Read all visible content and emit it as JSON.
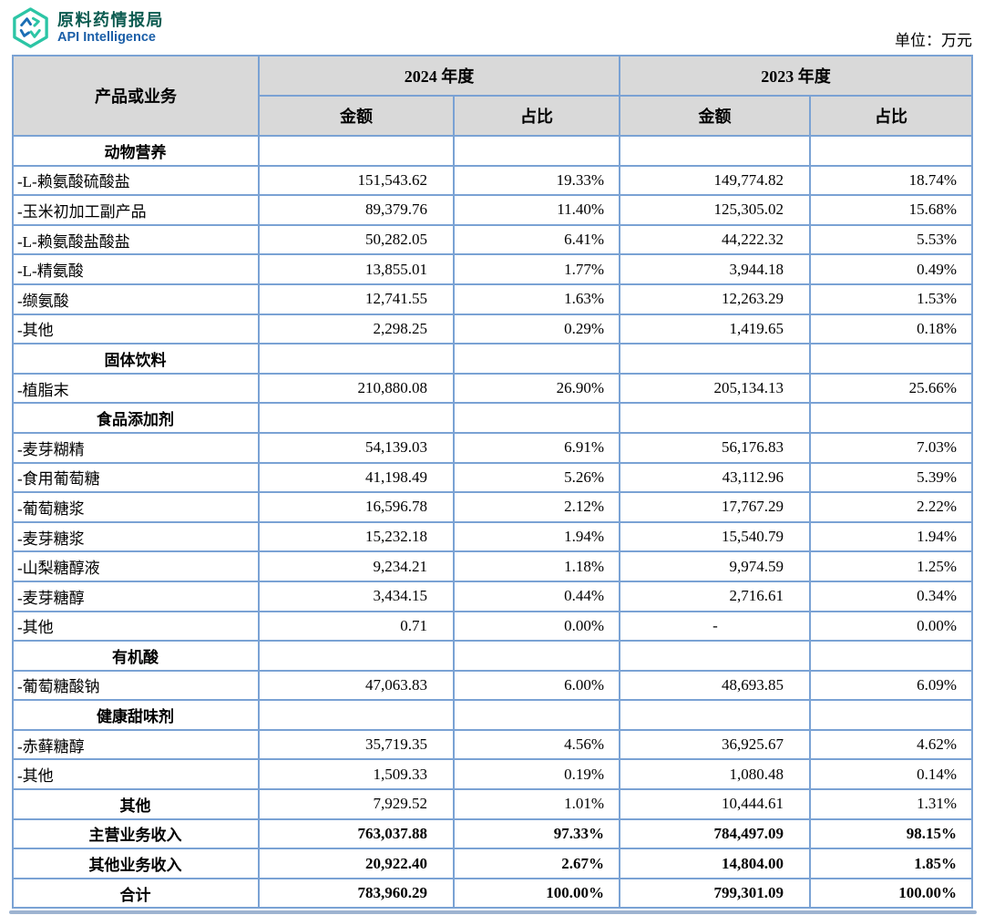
{
  "header": {
    "brand": {
      "title": "原料药情报局",
      "subtitle": "API Intelligence"
    },
    "unit_label": "单位：万元"
  },
  "colors": {
    "brand_teal": "#2cc5a5",
    "brand_blue": "#1b6fb5",
    "brand_title_text": "#0b5b50",
    "table_border": "#7aa2d4",
    "header_bg": "#d9d9d9",
    "footer_bar": "#9db3d0"
  },
  "table": {
    "col_product": "产品或业务",
    "year_2024": "2024 年度",
    "year_2023": "2023 年度",
    "amount_label": "金额",
    "share_label": "占比",
    "rows": [
      {
        "type": "category",
        "label": "动物营养",
        "v2024": "",
        "p2024": "",
        "v2023": "",
        "p2023": ""
      },
      {
        "type": "item",
        "label": "-L-赖氨酸硫酸盐",
        "v2024": "151,543.62",
        "p2024": "19.33%",
        "v2023": "149,774.82",
        "p2023": "18.74%"
      },
      {
        "type": "item",
        "label": "-玉米初加工副产品",
        "v2024": "89,379.76",
        "p2024": "11.40%",
        "v2023": "125,305.02",
        "p2023": "15.68%"
      },
      {
        "type": "item",
        "label": "-L-赖氨酸盐酸盐",
        "v2024": "50,282.05",
        "p2024": "6.41%",
        "v2023": "44,222.32",
        "p2023": "5.53%"
      },
      {
        "type": "item",
        "label": "-L-精氨酸",
        "v2024": "13,855.01",
        "p2024": "1.77%",
        "v2023": "3,944.18",
        "p2023": "0.49%"
      },
      {
        "type": "item",
        "label": "-缬氨酸",
        "v2024": "12,741.55",
        "p2024": "1.63%",
        "v2023": "12,263.29",
        "p2023": "1.53%"
      },
      {
        "type": "item",
        "label": "-其他",
        "v2024": "2,298.25",
        "p2024": "0.29%",
        "v2023": "1,419.65",
        "p2023": "0.18%"
      },
      {
        "type": "category",
        "label": "固体饮料",
        "v2024": "",
        "p2024": "",
        "v2023": "",
        "p2023": ""
      },
      {
        "type": "item",
        "label": "-植脂末",
        "v2024": "210,880.08",
        "p2024": "26.90%",
        "v2023": "205,134.13",
        "p2023": "25.66%"
      },
      {
        "type": "category",
        "label": "食品添加剂",
        "v2024": "",
        "p2024": "",
        "v2023": "",
        "p2023": ""
      },
      {
        "type": "item",
        "label": "-麦芽糊精",
        "v2024": "54,139.03",
        "p2024": "6.91%",
        "v2023": "56,176.83",
        "p2023": "7.03%"
      },
      {
        "type": "item",
        "label": "-食用葡萄糖",
        "v2024": "41,198.49",
        "p2024": "5.26%",
        "v2023": "43,112.96",
        "p2023": "5.39%"
      },
      {
        "type": "item",
        "label": "-葡萄糖浆",
        "v2024": "16,596.78",
        "p2024": "2.12%",
        "v2023": "17,767.29",
        "p2023": "2.22%"
      },
      {
        "type": "item",
        "label": "-麦芽糖浆",
        "v2024": "15,232.18",
        "p2024": "1.94%",
        "v2023": "15,540.79",
        "p2023": "1.94%"
      },
      {
        "type": "item",
        "label": "-山梨糖醇液",
        "v2024": "9,234.21",
        "p2024": "1.18%",
        "v2023": "9,974.59",
        "p2023": "1.25%"
      },
      {
        "type": "item",
        "label": "-麦芽糖醇",
        "v2024": "3,434.15",
        "p2024": "0.44%",
        "v2023": "2,716.61",
        "p2023": "0.34%"
      },
      {
        "type": "item",
        "label": "-其他",
        "v2024": "0.71",
        "p2024": "0.00%",
        "v2023": "-",
        "p2023": "0.00%"
      },
      {
        "type": "category",
        "label": "有机酸",
        "v2024": "",
        "p2024": "",
        "v2023": "",
        "p2023": ""
      },
      {
        "type": "item",
        "label": "-葡萄糖酸钠",
        "v2024": "47,063.83",
        "p2024": "6.00%",
        "v2023": "48,693.85",
        "p2023": "6.09%"
      },
      {
        "type": "category",
        "label": "健康甜味剂",
        "v2024": "",
        "p2024": "",
        "v2023": "",
        "p2023": ""
      },
      {
        "type": "item",
        "label": "-赤藓糖醇",
        "v2024": "35,719.35",
        "p2024": "4.56%",
        "v2023": "36,925.67",
        "p2023": "4.62%"
      },
      {
        "type": "item",
        "label": "-其他",
        "v2024": "1,509.33",
        "p2024": "0.19%",
        "v2023": "1,080.48",
        "p2023": "0.14%"
      },
      {
        "type": "subtotal",
        "label": "其他",
        "v2024": "7,929.52",
        "p2024": "1.01%",
        "v2023": "10,444.61",
        "p2023": "1.31%"
      },
      {
        "type": "total",
        "label": "主营业务收入",
        "v2024": "763,037.88",
        "p2024": "97.33%",
        "v2023": "784,497.09",
        "p2023": "98.15%"
      },
      {
        "type": "total",
        "label": "其他业务收入",
        "v2024": "20,922.40",
        "p2024": "2.67%",
        "v2023": "14,804.00",
        "p2023": "1.85%"
      },
      {
        "type": "total",
        "label": "合计",
        "v2024": "783,960.29",
        "p2024": "100.00%",
        "v2023": "799,301.09",
        "p2023": "100.00%"
      }
    ]
  }
}
